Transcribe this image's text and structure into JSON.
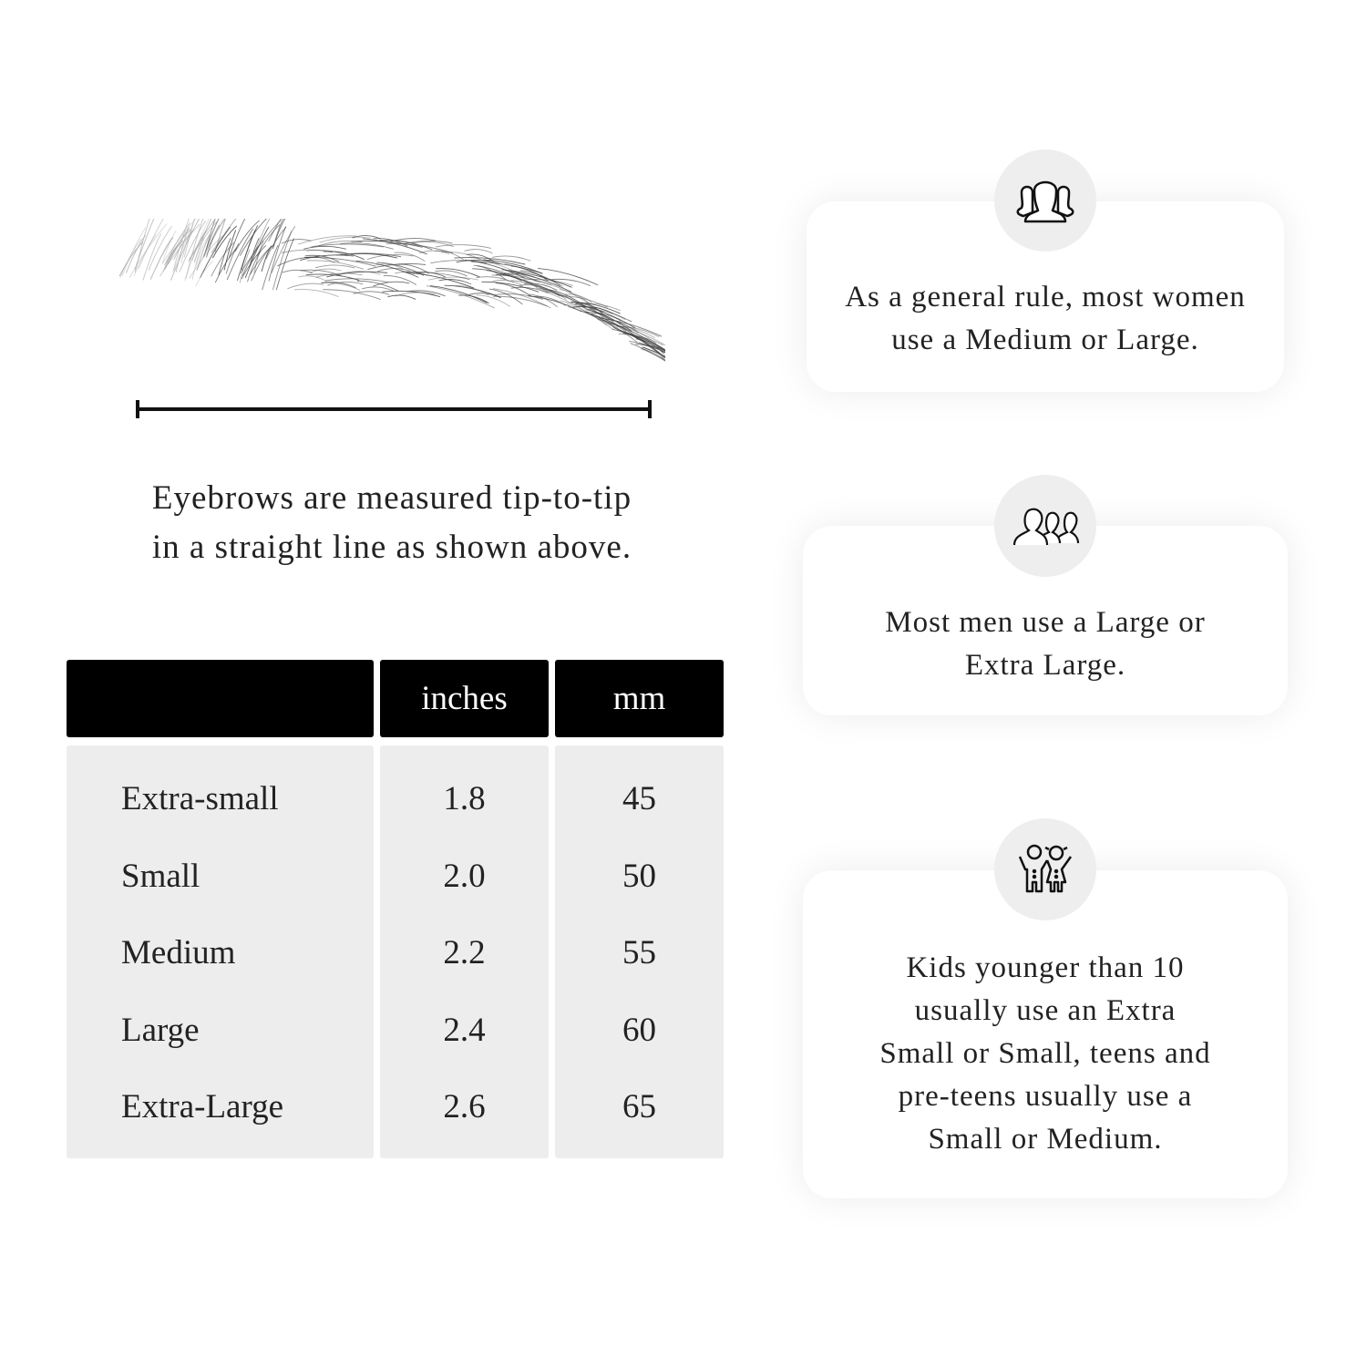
{
  "caption": {
    "line1": "Eyebrows are measured tip-to-tip",
    "line2": "in a straight line as shown above."
  },
  "table": {
    "headers": [
      "",
      "inches",
      "mm"
    ],
    "rows": [
      {
        "size": "Extra-small",
        "inches": "1.8",
        "mm": "45"
      },
      {
        "size": "Small",
        "inches": "2.0",
        "mm": "50"
      },
      {
        "size": "Medium",
        "inches": "2.2",
        "mm": "55"
      },
      {
        "size": "Large",
        "inches": "2.4",
        "mm": "60"
      },
      {
        "size": "Extra-Large",
        "inches": "2.6",
        "mm": "65"
      }
    ]
  },
  "cards": [
    {
      "icon": "women-group-icon",
      "lines": [
        "As a general rule, most women",
        "use a Medium or Large."
      ]
    },
    {
      "icon": "men-group-icon",
      "lines": [
        "Most men use a Large or",
        "Extra Large."
      ]
    },
    {
      "icon": "kids-icon",
      "lines": [
        "Kids younger than 10",
        "usually use an Extra",
        "Small or Small, teens and",
        "pre-teens usually use a",
        "Small or Medium."
      ]
    }
  ],
  "colors": {
    "header_bg": "#000000",
    "body_bg": "#ededed",
    "icon_circle": "#eeeeee"
  }
}
